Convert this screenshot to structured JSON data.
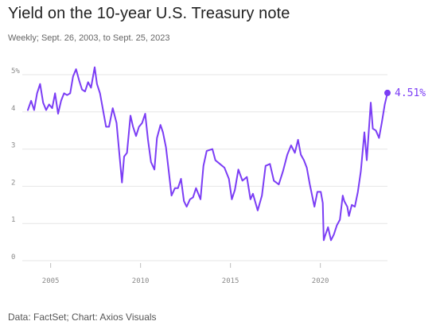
{
  "title": "Yield on the 10-year U.S. Treasury note",
  "subtitle": "Weekly; Sept. 26, 2003, to Sept. 25, 2023",
  "source": "Data: FactSet; Chart: Axios Visuals",
  "chart_data": {
    "type": "line",
    "title": "Yield on the 10-year U.S. Treasury note",
    "subtitle": "Weekly; Sept. 26, 2003, to Sept. 25, 2023",
    "xlabel": "",
    "ylabel": "",
    "xlim": [
      "2003-09-26",
      "2023-09-25"
    ],
    "ylim": [
      0,
      5
    ],
    "x_ticks": [
      2005,
      2010,
      2015,
      2020
    ],
    "y_ticks": [
      {
        "value": 0,
        "label": "0"
      },
      {
        "value": 1,
        "label": "1"
      },
      {
        "value": 2,
        "label": "2"
      },
      {
        "value": 3,
        "label": "3"
      },
      {
        "value": 4,
        "label": "4"
      },
      {
        "value": 5,
        "label": "5%"
      }
    ],
    "grid": true,
    "series_color": "#7b3df5",
    "end_label": "4.51%",
    "series": [
      {
        "x": [
          "2003-09-26",
          "2003-12-01",
          "2004-02-01",
          "2004-04-01",
          "2004-06-01",
          "2004-08-01",
          "2004-10-01",
          "2004-12-01",
          "2005-02-01",
          "2005-04-01",
          "2005-06-01",
          "2005-08-01",
          "2005-10-01",
          "2005-12-01",
          "2006-02-01",
          "2006-04-01",
          "2006-06-01",
          "2006-08-01",
          "2006-10-01",
          "2006-12-01",
          "2007-02-01",
          "2007-04-01",
          "2007-06-15",
          "2007-08-01",
          "2007-10-01",
          "2007-12-01",
          "2008-02-01",
          "2008-04-01",
          "2008-06-15",
          "2008-09-01",
          "2008-12-20",
          "2009-02-01",
          "2009-04-01",
          "2009-06-10",
          "2009-08-01",
          "2009-10-01",
          "2009-12-01",
          "2010-02-01",
          "2010-04-05",
          "2010-06-01",
          "2010-08-01",
          "2010-10-10",
          "2010-12-01",
          "2011-02-10",
          "2011-04-01",
          "2011-06-01",
          "2011-08-01",
          "2011-09-22",
          "2011-12-01",
          "2012-02-01",
          "2012-04-01",
          "2012-06-01",
          "2012-07-25",
          "2012-10-01",
          "2012-12-01",
          "2013-02-01",
          "2013-05-02",
          "2013-07-01",
          "2013-09-06",
          "2013-12-31",
          "2014-03-01",
          "2014-06-01",
          "2014-09-01",
          "2014-12-01",
          "2015-01-30",
          "2015-04-01",
          "2015-06-10",
          "2015-09-01",
          "2015-12-01",
          "2016-02-11",
          "2016-04-01",
          "2016-07-08",
          "2016-10-01",
          "2016-12-15",
          "2017-03-13",
          "2017-06-01",
          "2017-09-08",
          "2017-12-01",
          "2018-03-01",
          "2018-05-17",
          "2018-08-01",
          "2018-10-05",
          "2018-12-01",
          "2019-02-01",
          "2019-04-01",
          "2019-06-01",
          "2019-09-03",
          "2019-11-01",
          "2020-01-10",
          "2020-02-20",
          "2020-03-09",
          "2020-04-01",
          "2020-06-05",
          "2020-08-04",
          "2020-10-01",
          "2020-12-01",
          "2021-02-01",
          "2021-03-31",
          "2021-05-01",
          "2021-07-01",
          "2021-08-04",
          "2021-10-01",
          "2021-12-01",
          "2022-02-01",
          "2022-04-01",
          "2022-06-14",
          "2022-08-01",
          "2022-10-21",
          "2022-12-01",
          "2023-02-01",
          "2023-04-06",
          "2023-06-01",
          "2023-08-01",
          "2023-09-25"
        ],
        "values": [
          4.05,
          4.3,
          4.05,
          4.5,
          4.75,
          4.25,
          4.05,
          4.2,
          4.1,
          4.5,
          3.95,
          4.3,
          4.5,
          4.45,
          4.5,
          4.95,
          5.15,
          4.85,
          4.6,
          4.55,
          4.8,
          4.65,
          5.2,
          4.75,
          4.5,
          4.05,
          3.6,
          3.6,
          4.1,
          3.7,
          2.1,
          2.8,
          2.9,
          3.9,
          3.6,
          3.35,
          3.6,
          3.7,
          3.95,
          3.25,
          2.65,
          2.45,
          3.3,
          3.65,
          3.45,
          3.05,
          2.35,
          1.75,
          1.95,
          1.95,
          2.2,
          1.6,
          1.45,
          1.65,
          1.7,
          1.95,
          1.65,
          2.55,
          2.95,
          3.0,
          2.7,
          2.6,
          2.5,
          2.2,
          1.65,
          1.9,
          2.45,
          2.15,
          2.25,
          1.65,
          1.8,
          1.35,
          1.75,
          2.55,
          2.6,
          2.15,
          2.05,
          2.4,
          2.85,
          3.1,
          2.9,
          3.25,
          2.85,
          2.7,
          2.5,
          2.05,
          1.45,
          1.85,
          1.85,
          1.55,
          0.55,
          0.65,
          0.9,
          0.55,
          0.7,
          0.95,
          1.1,
          1.75,
          1.6,
          1.45,
          1.2,
          1.5,
          1.45,
          1.85,
          2.4,
          3.45,
          2.7,
          4.25,
          3.55,
          3.5,
          3.3,
          3.7,
          4.2,
          4.51
        ]
      }
    ]
  }
}
